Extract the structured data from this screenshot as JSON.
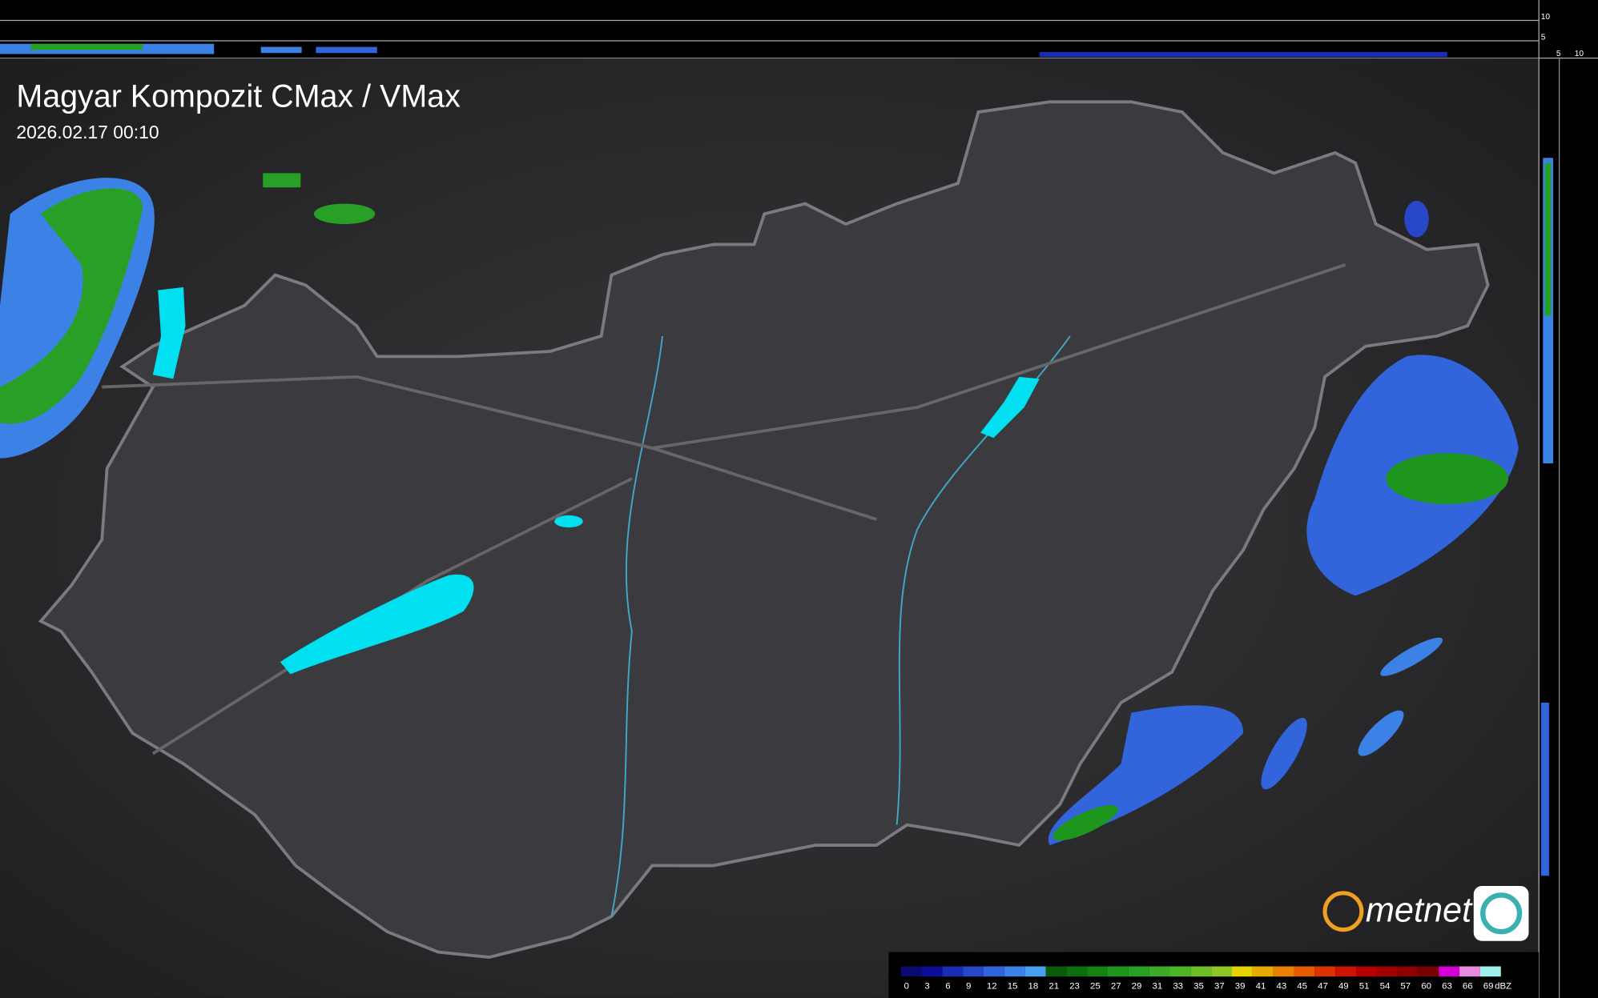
{
  "header": {
    "title": "Magyar Kompozit CMax / VMax",
    "timestamp": "2026.02.17 00:10"
  },
  "logo": {
    "text": "metnet"
  },
  "side_scale": {
    "top_labels": [
      "10",
      "5"
    ],
    "bottom_labels": [
      "5",
      "10"
    ]
  },
  "legend": {
    "unit": "dBZ",
    "items": [
      {
        "label": 0,
        "color": "#0a0a6e"
      },
      {
        "label": 3,
        "color": "#0c0c96"
      },
      {
        "label": 6,
        "color": "#1a2cb4"
      },
      {
        "label": 9,
        "color": "#2846c8"
      },
      {
        "label": 12,
        "color": "#3264dc"
      },
      {
        "label": 15,
        "color": "#3c82e6"
      },
      {
        "label": 18,
        "color": "#4aa0f0"
      },
      {
        "label": 21,
        "color": "#0a5a0a"
      },
      {
        "label": 23,
        "color": "#0e6e0e"
      },
      {
        "label": 25,
        "color": "#168216"
      },
      {
        "label": 27,
        "color": "#1e961e"
      },
      {
        "label": 29,
        "color": "#28a028"
      },
      {
        "label": 31,
        "color": "#3caa28"
      },
      {
        "label": 33,
        "color": "#50b428"
      },
      {
        "label": 35,
        "color": "#6ebe28"
      },
      {
        "label": 37,
        "color": "#8cc828"
      },
      {
        "label": 39,
        "color": "#e6d200"
      },
      {
        "label": 41,
        "color": "#e6aa00"
      },
      {
        "label": 43,
        "color": "#e68200"
      },
      {
        "label": 45,
        "color": "#e65a00"
      },
      {
        "label": 47,
        "color": "#dc3200"
      },
      {
        "label": 49,
        "color": "#c81400"
      },
      {
        "label": 51,
        "color": "#b40000"
      },
      {
        "label": 54,
        "color": "#a00000"
      },
      {
        "label": 57,
        "color": "#8c0000"
      },
      {
        "label": 60,
        "color": "#780000"
      },
      {
        "label": 63,
        "color": "#d200d2"
      },
      {
        "label": 66,
        "color": "#e68cdc"
      },
      {
        "label": 69,
        "color": "#a0f0f0"
      }
    ]
  }
}
